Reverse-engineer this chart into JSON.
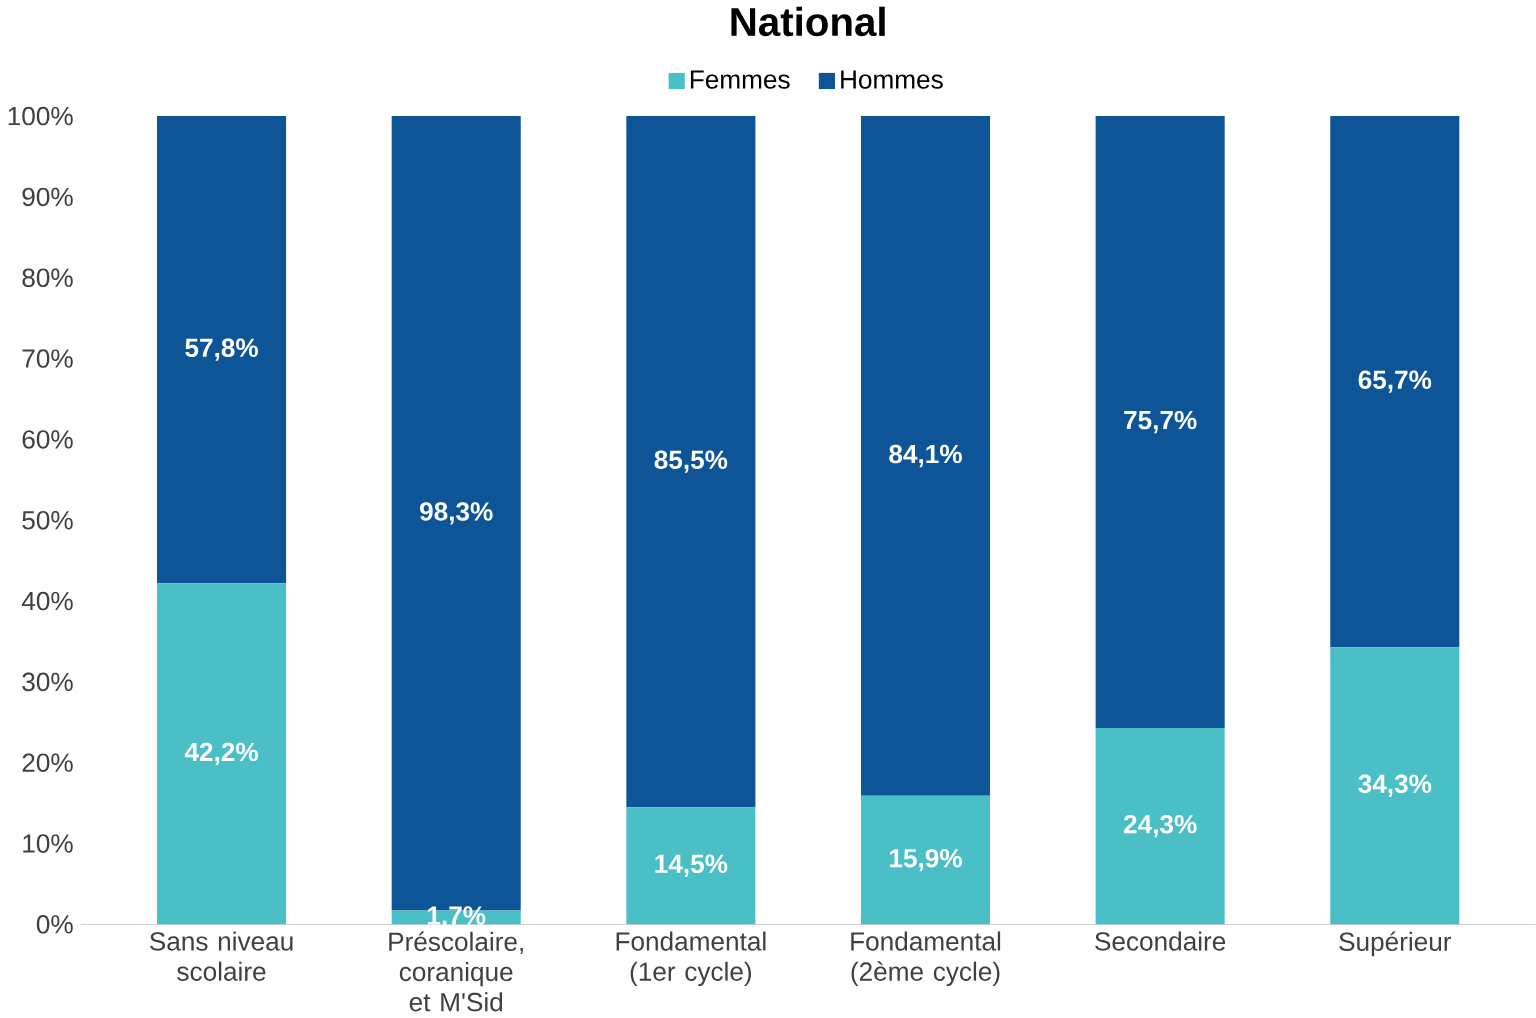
{
  "chart_data": {
    "type": "bar",
    "title": "**National**",
    "stacked": true,
    "categories": [
      "Sans niveau scolaire",
      "Préscolaire, coranique et M'Sid",
      "Fondamental (1er cycle)",
      "Fondamental (2ème cycle)",
      "Secondaire",
      "Supérieur"
    ],
    "series": [
      {
        "name": "Femmes",
        "color": "#4bbfc6",
        "values": [
          42.2,
          1.7,
          14.5,
          15.9,
          24.3,
          34.3
        ],
        "value_labels": [
          "42,2%",
          "1,7%",
          "14,5%",
          "15,9%",
          "24,3%",
          "34,3%"
        ]
      },
      {
        "name": "Hommes",
        "color": "#0e5597",
        "values": [
          57.8,
          98.3,
          85.5,
          84.1,
          75.7,
          65.7
        ],
        "value_labels": [
          "57,8%",
          "98,3%",
          "85,5%",
          "84,1%",
          "75,7%",
          "65,7%"
        ]
      }
    ],
    "ylim": [
      0,
      100
    ],
    "yticks": [
      {
        "value": 0,
        "label": "0%"
      },
      {
        "value": 10,
        "label": "10%"
      },
      {
        "value": 20,
        "label": "20%"
      },
      {
        "value": 30,
        "label": "30%"
      },
      {
        "value": 40,
        "label": "40%"
      },
      {
        "value": 50,
        "label": "50%"
      },
      {
        "value": 60,
        "label": "60%"
      },
      {
        "value": 70,
        "label": "70%"
      },
      {
        "value": 80,
        "label": "80%"
      },
      {
        "value": 90,
        "label": "90%"
      },
      {
        "value": 100,
        "label": "100%"
      }
    ],
    "legend": "top",
    "grid": false
  }
}
